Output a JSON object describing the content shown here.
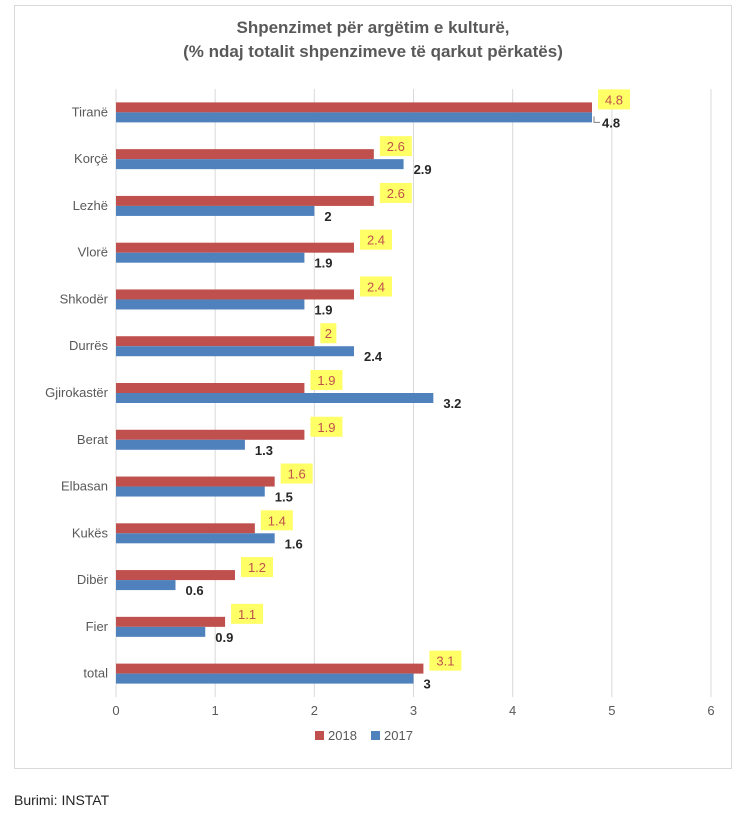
{
  "chart_data": {
    "type": "bar",
    "orientation": "horizontal",
    "title": [
      "Shpenzimet për argëtim e kulturë,",
      "(% ndaj totalit shpenzimeve të qarkut përkatës)"
    ],
    "categories": [
      "Tiranë",
      "Korçë",
      "Lezhë",
      "Vlorë",
      "Shkodër",
      "Durrës",
      "Gjirokastër",
      "Berat",
      "Elbasan",
      "Kukës",
      "Dibër",
      "Fier",
      "total"
    ],
    "series": [
      {
        "name": "2018",
        "color": "#c0504d",
        "label_bg": "#ffff66",
        "values": [
          4.8,
          2.6,
          2.6,
          2.4,
          2.4,
          2,
          1.9,
          1.9,
          1.6,
          1.4,
          1.2,
          1.1,
          3.1
        ],
        "labels": [
          "4.8",
          "2.6",
          "2.6",
          "2.4",
          "2.4",
          "2",
          "1.9",
          "1.9",
          "1.6",
          "1.4",
          "1.2",
          "1.1",
          "3.1"
        ]
      },
      {
        "name": "2017",
        "color": "#4f81bd",
        "values": [
          4.8,
          2.9,
          2,
          1.9,
          1.9,
          2.4,
          3.2,
          1.3,
          1.5,
          1.6,
          0.6,
          0.9,
          3
        ],
        "labels": [
          "4.8",
          "2.9",
          "2",
          "1.9",
          "1.9",
          "2.4",
          "3.2",
          "1.3",
          "1.5",
          "1.6",
          "0.6",
          "0.9",
          "3"
        ]
      }
    ],
    "xlim": [
      0,
      6
    ],
    "xticks": [
      "0",
      "1",
      "2",
      "3",
      "4",
      "5",
      "6"
    ],
    "grid": true,
    "legend_position": "bottom"
  },
  "source": "Burimi: INSTAT"
}
